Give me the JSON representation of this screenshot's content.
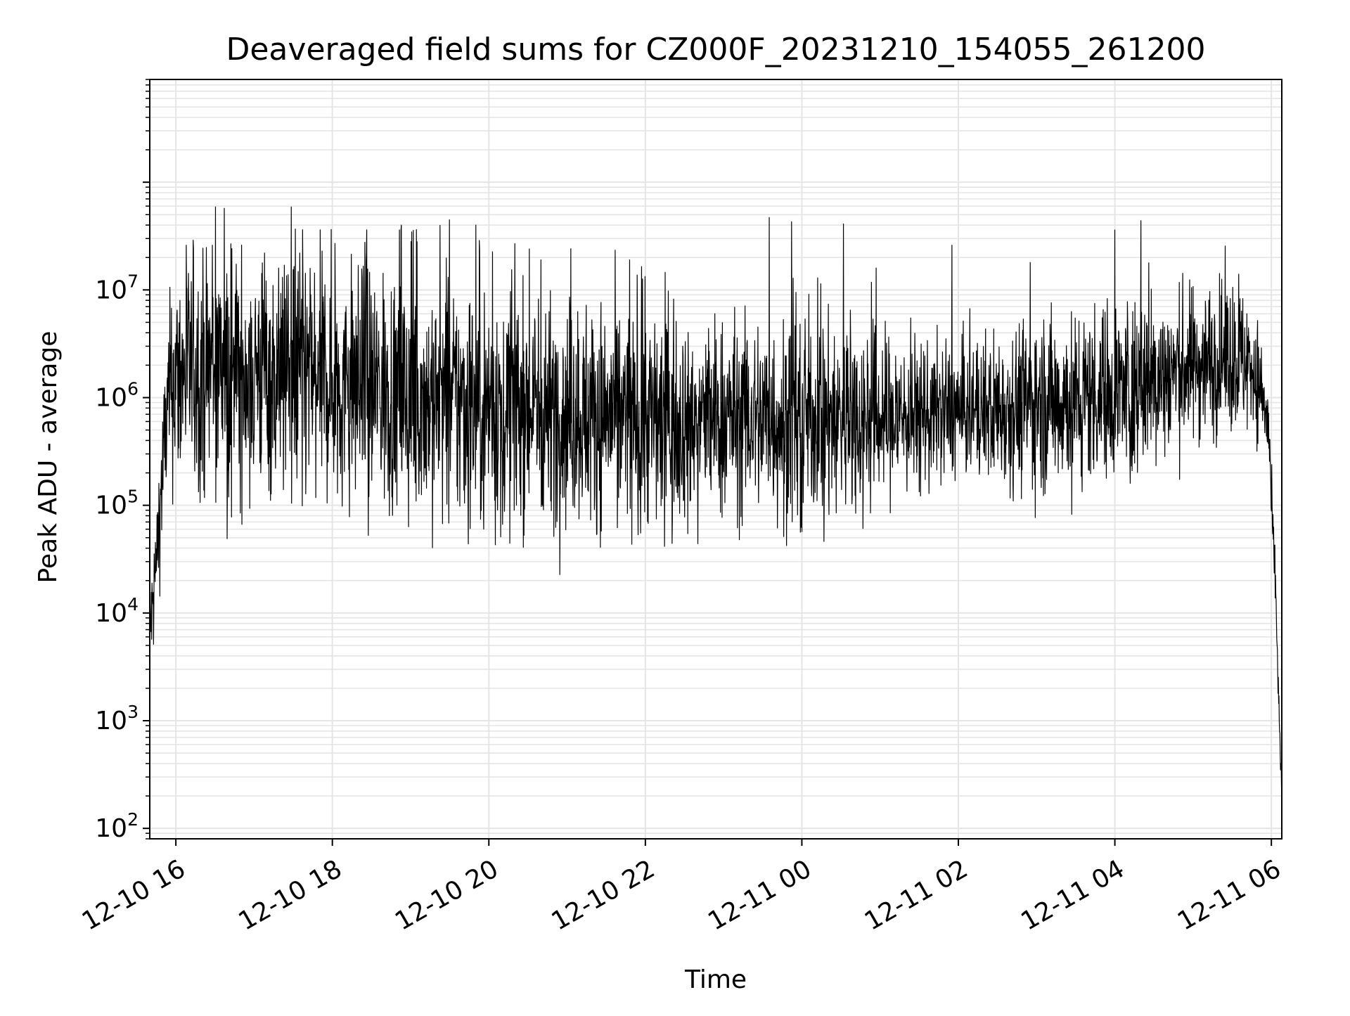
{
  "chart_data": {
    "type": "line",
    "title": "Deaveraged field sums for CZ000F_20231210_154055_261200",
    "xlabel": "Time",
    "ylabel": "Peak ADU - average",
    "x_ticks": [
      "12-10 16",
      "12-10 18",
      "12-10 20",
      "12-10 22",
      "12-11 00",
      "12-11 02",
      "12-11 04",
      "12-11 06"
    ],
    "y_ticks": [
      {
        "value": 100,
        "base": "10",
        "exp": "2"
      },
      {
        "value": 1000,
        "base": "10",
        "exp": "3"
      },
      {
        "value": 10000,
        "base": "10",
        "exp": "4"
      },
      {
        "value": 100000,
        "base": "10",
        "exp": "5"
      },
      {
        "value": 1000000,
        "base": "10",
        "exp": "6"
      },
      {
        "value": 10000000,
        "base": "10",
        "exp": "7"
      }
    ],
    "xlim": [
      "2023-12-10 15:40",
      "2023-12-11 06:08"
    ],
    "ylim": [
      80,
      900000000
    ],
    "y_scale": "log",
    "grid": true,
    "line_color": "#000000",
    "grid_color": "#e5e5e5",
    "series": [
      {
        "values_time": [
          "2023-12-10 15:40",
          "2023-12-10 15:42",
          "2023-12-10 15:45",
          "2023-12-10 15:48",
          "2023-12-10 15:52",
          "2023-12-10 15:56",
          "2023-12-10 16:00",
          "2023-12-10 16:30",
          "2023-12-10 17:00",
          "2023-12-10 17:30",
          "2023-12-10 18:00",
          "2023-12-10 18:30",
          "2023-12-10 19:00",
          "2023-12-10 19:30",
          "2023-12-10 20:00",
          "2023-12-10 20:30",
          "2023-12-10 21:00",
          "2023-12-10 21:30",
          "2023-12-10 22:00",
          "2023-12-10 22:30",
          "2023-12-10 23:00",
          "2023-12-10 23:30",
          "2023-12-11 00:00",
          "2023-12-11 00:30",
          "2023-12-11 01:00",
          "2023-12-11 01:30",
          "2023-12-11 02:00",
          "2023-12-11 02:30",
          "2023-12-11 03:00",
          "2023-12-11 03:30",
          "2023-12-11 04:00",
          "2023-12-11 04:30",
          "2023-12-11 05:00",
          "2023-12-11 05:30",
          "2023-12-11 05:45",
          "2023-12-11 05:52",
          "2023-12-11 05:58",
          "2023-12-11 06:00",
          "2023-12-11 06:03",
          "2023-12-11 06:06",
          "2023-12-11 06:08"
        ],
        "values": [
          8000,
          10000,
          30000,
          100000,
          500000,
          1200000,
          1500000,
          2000000,
          1800000,
          1600000,
          1500000,
          1200000,
          1000000,
          900000,
          850000,
          800000,
          750000,
          700000,
          650000,
          650000,
          650000,
          650000,
          650000,
          650000,
          650000,
          700000,
          750000,
          800000,
          900000,
          1000000,
          1200000,
          1500000,
          2000000,
          2500000,
          2000000,
          1200000,
          500000,
          100000,
          20000,
          1000,
          200
        ],
        "spread_decades": [
          0.2,
          0.25,
          0.3,
          0.3,
          0.35,
          0.45,
          0.5,
          0.55,
          0.55,
          0.55,
          0.55,
          0.55,
          0.55,
          0.55,
          0.55,
          0.5,
          0.5,
          0.5,
          0.5,
          0.45,
          0.45,
          0.45,
          0.45,
          0.45,
          0.4,
          0.35,
          0.3,
          0.35,
          0.4,
          0.4,
          0.4,
          0.4,
          0.35,
          0.35,
          0.3,
          0.25,
          0.2,
          0.15,
          0.1,
          0.1,
          0.1
        ],
        "peaks": [
          {
            "x": "2023-12-10 16:08",
            "y": 26000000
          },
          {
            "x": "2023-12-10 16:28",
            "y": 26000000
          },
          {
            "x": "2023-12-10 17:08",
            "y": 22000000
          },
          {
            "x": "2023-12-10 17:35",
            "y": 22000000
          },
          {
            "x": "2023-12-10 18:02",
            "y": 27000000
          },
          {
            "x": "2023-12-10 18:53",
            "y": 40000000
          },
          {
            "x": "2023-12-10 19:05",
            "y": 28000000
          },
          {
            "x": "2023-12-10 19:50",
            "y": 40000000
          },
          {
            "x": "2023-12-10 20:40",
            "y": 19000000
          },
          {
            "x": "2023-12-10 21:48",
            "y": 19000000
          },
          {
            "x": "2023-12-10 23:35",
            "y": 47000000
          },
          {
            "x": "2023-12-10 23:52",
            "y": 43000000
          },
          {
            "x": "2023-12-11 00:32",
            "y": 41000000
          },
          {
            "x": "2023-12-11 00:57",
            "y": 16000000
          },
          {
            "x": "2023-12-11 01:55",
            "y": 26000000
          },
          {
            "x": "2023-12-11 02:55",
            "y": 18000000
          },
          {
            "x": "2023-12-11 04:00",
            "y": 36000000
          },
          {
            "x": "2023-12-11 04:20",
            "y": 44000000
          },
          {
            "x": "2023-12-11 05:35",
            "y": 14000000
          }
        ]
      }
    ]
  }
}
